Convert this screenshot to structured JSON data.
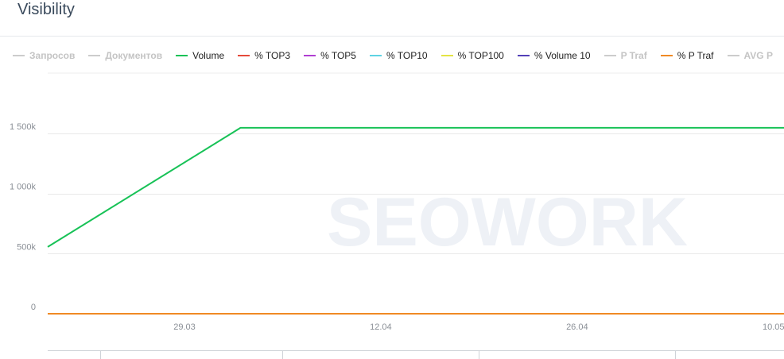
{
  "page": {
    "title": "Visibility",
    "watermark": "SEOWORK"
  },
  "legend": [
    {
      "label": "Запросов",
      "color": "#c9c9c9",
      "hidden": true
    },
    {
      "label": "Документов",
      "color": "#c9c9c9",
      "hidden": true
    },
    {
      "label": "Volume",
      "color": "#18c257",
      "hidden": false
    },
    {
      "label": "% TOP3",
      "color": "#e5493a",
      "hidden": false
    },
    {
      "label": "% TOP5",
      "color": "#b03fd2",
      "hidden": false
    },
    {
      "label": "% TOP10",
      "color": "#5fd3e3",
      "hidden": false
    },
    {
      "label": "% TOP100",
      "color": "#e4e444",
      "hidden": false
    },
    {
      "label": "% Volume 10",
      "color": "#5340b8",
      "hidden": false
    },
    {
      "label": "P Traf",
      "color": "#c9c9c9",
      "hidden": true
    },
    {
      "label": "% P Traf",
      "color": "#f08a24",
      "hidden": false
    },
    {
      "label": "AVG P",
      "color": "#c9c9c9",
      "hidden": true
    }
  ],
  "chart_data": {
    "type": "line",
    "xlabel": "",
    "ylabel": "",
    "y_ticks": [
      {
        "value": 0,
        "label": "0"
      },
      {
        "value": 500000,
        "label": "500k"
      },
      {
        "value": 1000000,
        "label": "1 000k"
      },
      {
        "value": 1500000,
        "label": "1 500k"
      }
    ],
    "ylim": [
      0,
      2000000
    ],
    "x_ticks": [
      {
        "day": 29,
        "label": "29.03"
      },
      {
        "day": 43,
        "label": "12.04"
      },
      {
        "day": 57,
        "label": "26.04"
      },
      {
        "day": 71,
        "label": "10.05"
      }
    ],
    "xlim": [
      19.25,
      71.75
    ],
    "grid": true,
    "series": [
      {
        "name": "Volume",
        "color": "#18c257",
        "points": [
          {
            "x": 19.25,
            "y": 555000
          },
          {
            "x": 33,
            "y": 1545000
          },
          {
            "x": 71.75,
            "y": 1545000
          }
        ]
      },
      {
        "name": "% P Traf",
        "color": "#f08a24",
        "points": [
          {
            "x": 19.25,
            "y": 0
          },
          {
            "x": 71.75,
            "y": 0
          }
        ]
      }
    ]
  }
}
